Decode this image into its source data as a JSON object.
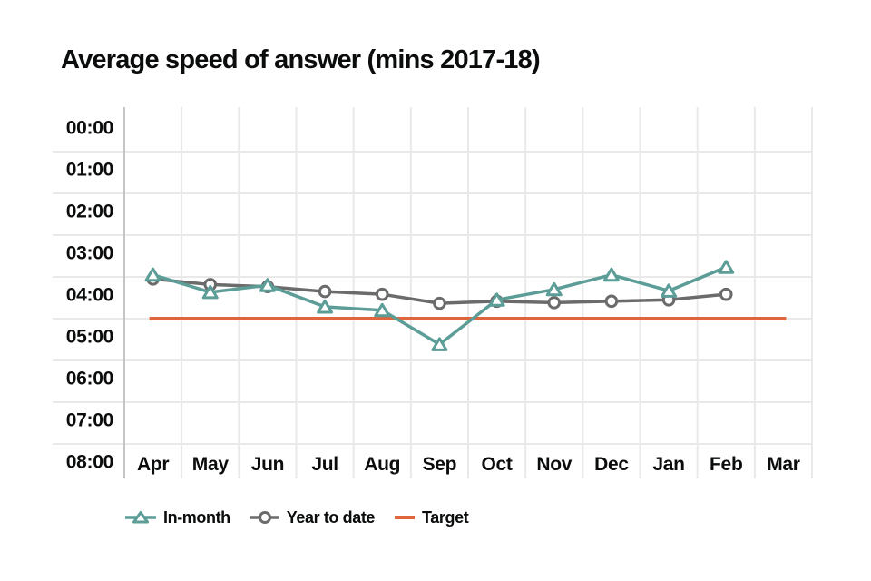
{
  "page": {
    "background": "#ffffff",
    "text_color": "#0b0c0c"
  },
  "header": {
    "title": "Average speed of answer (mins 2017-18)"
  },
  "chart_data": {
    "type": "line",
    "title": "Average speed of answer (mins 2017-18)",
    "unit": "minutes:seconds (mm:ss)",
    "categories": [
      "Apr",
      "May",
      "Jun",
      "Jul",
      "Aug",
      "Sep",
      "Oct",
      "Nov",
      "Dec",
      "Jan",
      "Feb",
      "Mar"
    ],
    "y_ticks": [
      "00:00",
      "01:00",
      "02:00",
      "03:00",
      "04:00",
      "05:00",
      "06:00",
      "07:00",
      "08:00"
    ],
    "y_axis_direction": "values increase downward, 00:00 at top to 08:00 at bottom",
    "grid": true,
    "legend_position": "bottom",
    "series": [
      {
        "name": "Year to date",
        "marker": "circle",
        "color": "#6B6B6B",
        "values": [
          "04:03",
          "04:11",
          "04:14",
          "04:21",
          "04:25",
          "04:38",
          "04:35",
          "04:37",
          "04:35",
          "04:33",
          "04:25",
          null
        ]
      },
      {
        "name": "In-month",
        "marker": "triangle",
        "color": "#5C9D97",
        "values": [
          "03:57",
          "04:22",
          "04:12",
          "04:43",
          "04:48",
          "05:37",
          "04:33",
          "04:18",
          "03:57",
          "04:20",
          "03:46",
          null
        ]
      }
    ],
    "target": {
      "name": "Target",
      "color": "#E0653C",
      "value": "05:00"
    },
    "gridline_color": "#e9e9e9",
    "axis_line_color": "#c5c5c5",
    "label_color": "#0b0c0c"
  }
}
